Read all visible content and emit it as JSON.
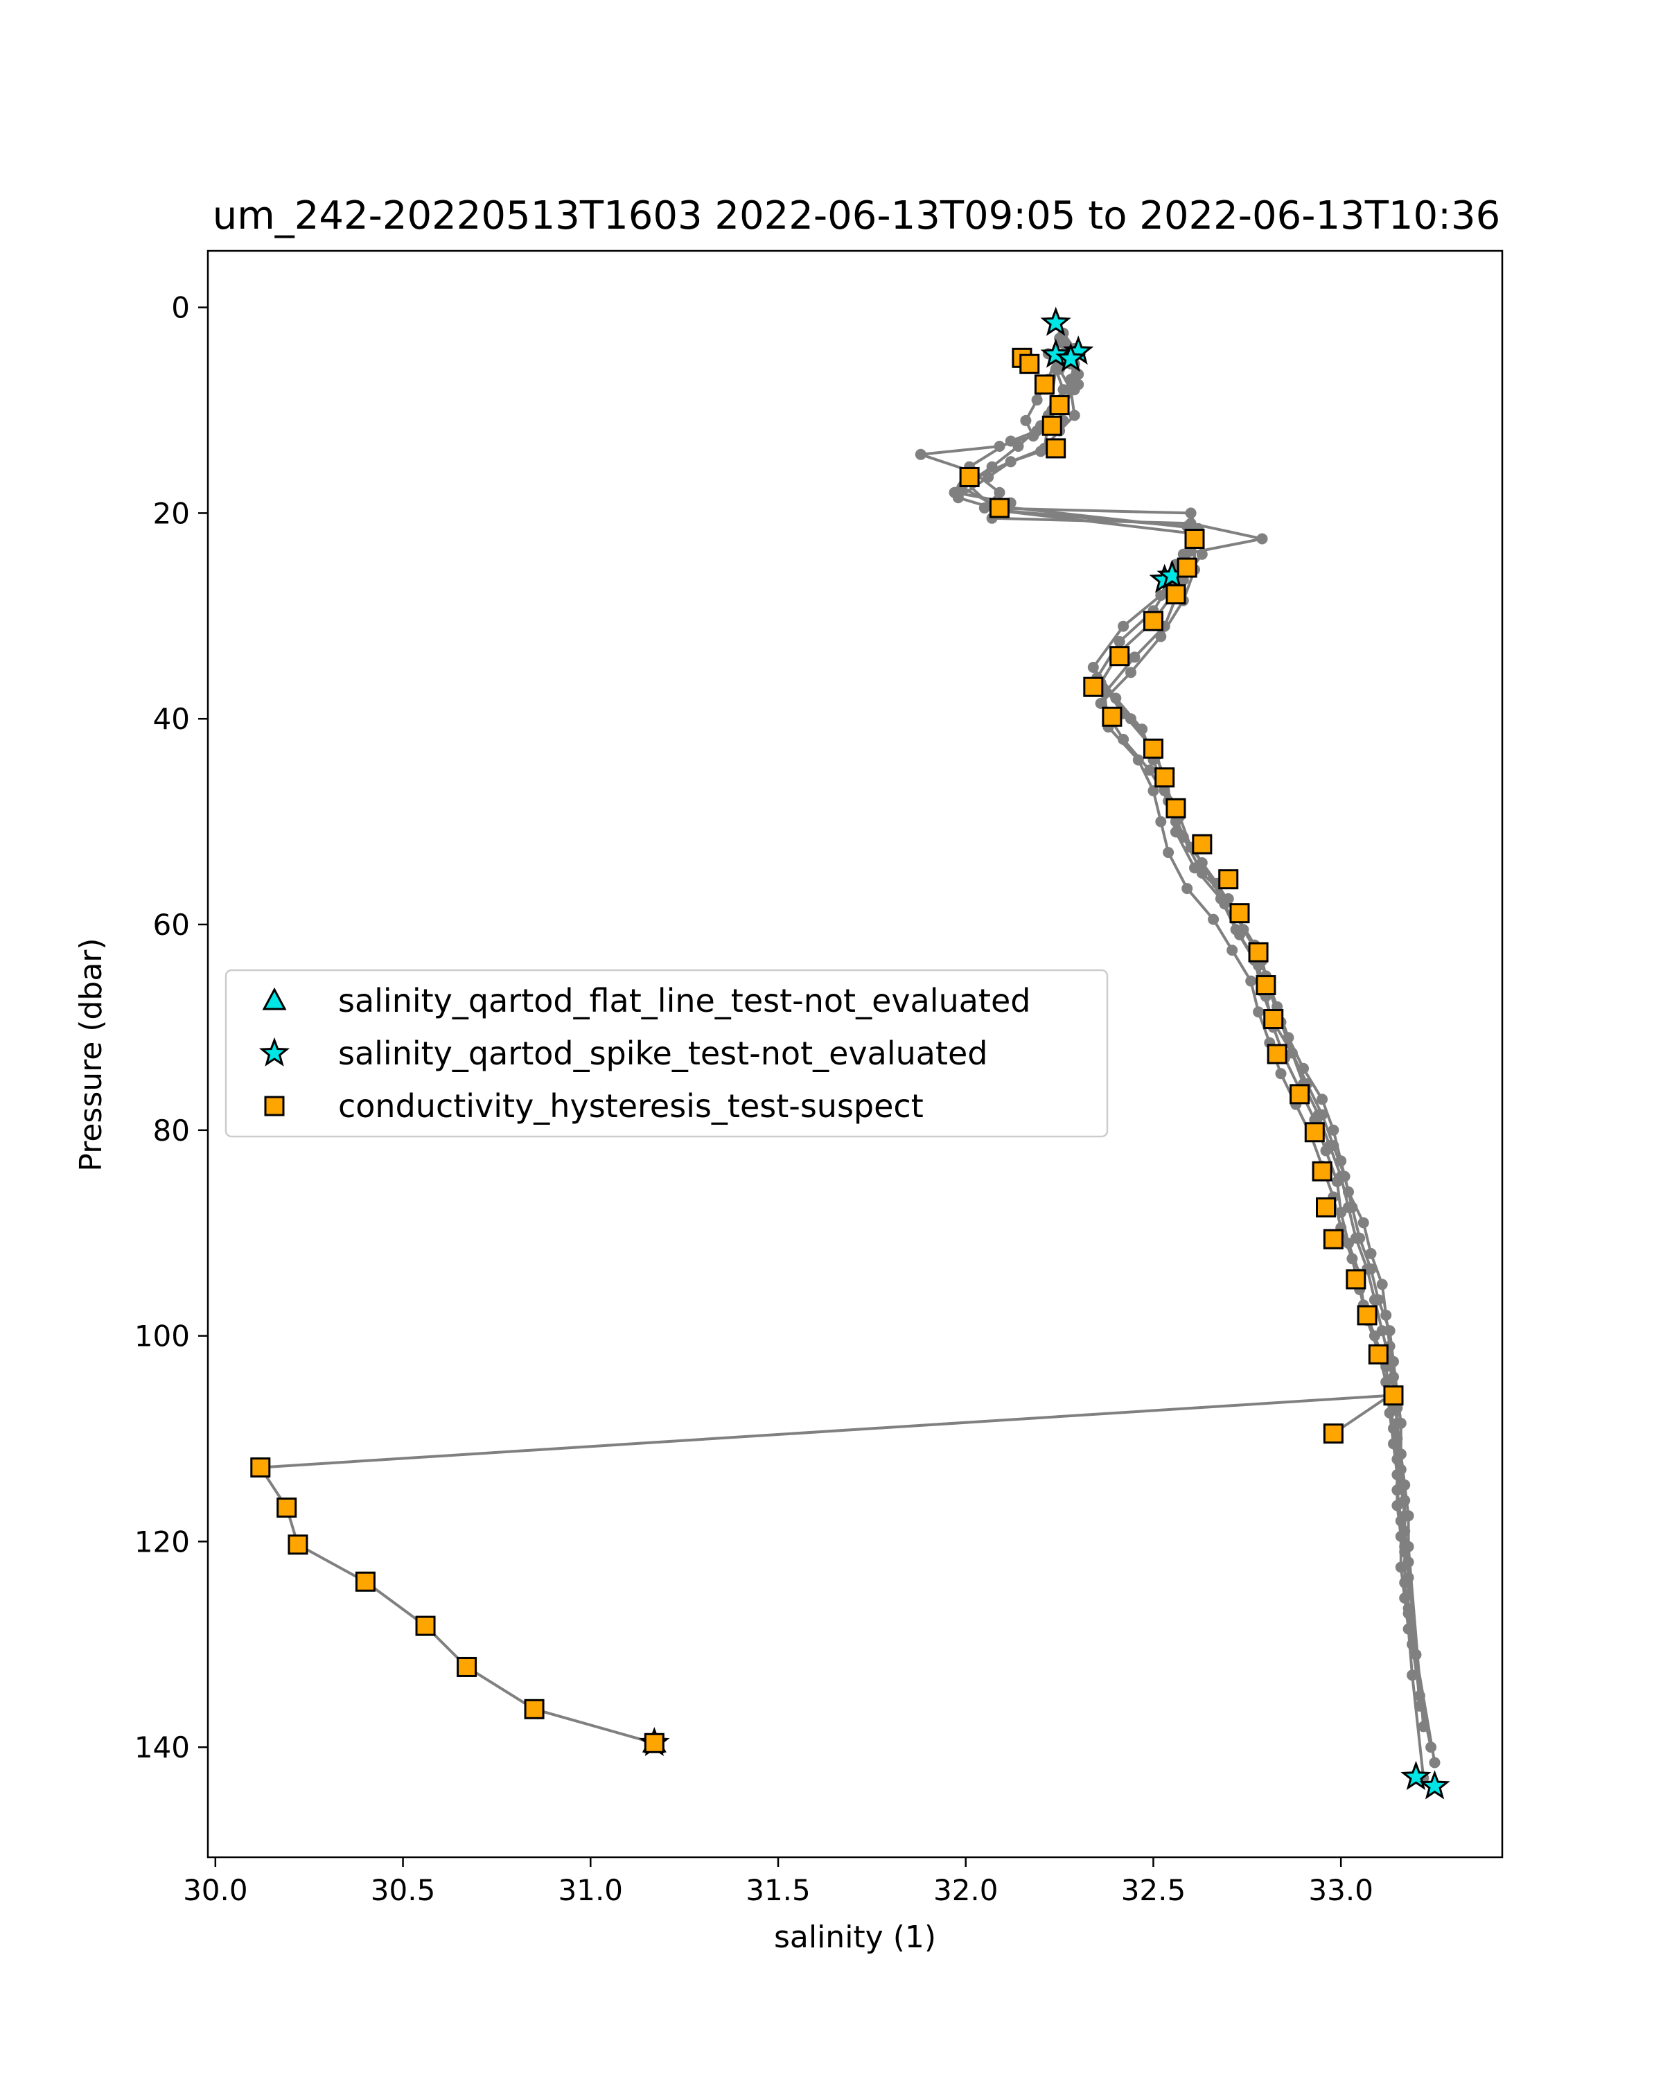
{
  "chart_data": {
    "type": "scatter",
    "title": "um_242-20220513T1603 2022-06-13T09:05 to 2022-06-13T10:36",
    "xlabel": "salinity (1)",
    "ylabel": "Pressure (dbar)",
    "xlim": [
      29.98,
      33.43
    ],
    "ylim": [
      150.7,
      -5.5
    ],
    "y_inverted": true,
    "grid": false,
    "legend_location": "center-left",
    "x_ticks": [
      "30.0",
      "30.5",
      "31.0",
      "31.5",
      "32.0",
      "32.5",
      "33.0"
    ],
    "x_tick_values": [
      30.0,
      30.5,
      31.0,
      31.5,
      32.0,
      32.5,
      33.0
    ],
    "y_ticks": [
      "0",
      "20",
      "40",
      "60",
      "80",
      "100",
      "120",
      "140"
    ],
    "y_tick_values": [
      0,
      20,
      40,
      60,
      80,
      100,
      120,
      140
    ],
    "profile_color": "#808080",
    "profile_segments": [
      {
        "x": [
          32.25,
          32.27,
          32.28,
          32.3,
          32.29,
          32.24,
          32.26,
          32.18,
          32.09,
          31.88,
          32.02,
          32.09,
          32.05,
          32.6,
          32.62,
          32.56,
          32.52,
          32.42,
          32.34,
          32.4,
          32.47,
          32.5,
          32.53,
          32.56,
          32.63,
          32.69,
          32.73,
          32.78,
          32.8,
          32.82,
          32.85,
          32.89,
          32.93,
          32.96,
          32.99,
          33.0,
          33.02,
          33.05,
          33.06,
          33.09,
          33.12,
          33.13,
          33.14,
          33.15,
          33.15,
          33.16,
          33.17,
          33.17,
          33.18,
          33.19,
          33.21,
          33.24
        ]
      },
      {
        "x": [
          32.26,
          32.29,
          32.29,
          32.28,
          32.25,
          32.22,
          32.19,
          32.12,
          32.01,
          31.97,
          32.12,
          32.07,
          32.6,
          32.79,
          32.58,
          32.55,
          32.5,
          32.41,
          32.35,
          32.42,
          32.49,
          32.53,
          32.55,
          32.58,
          32.63,
          32.7,
          32.74,
          32.79,
          32.81,
          32.84,
          32.87,
          32.9,
          32.94,
          32.97,
          33.0,
          33.02,
          33.04,
          33.07,
          33.09,
          33.11,
          33.13,
          33.14,
          33.15,
          33.16,
          33.16,
          33.17,
          33.17,
          33.18,
          33.18,
          33.2,
          33.25
        ]
      },
      {
        "x": [
          32.24,
          32.22,
          32.19,
          32.16,
          32.18,
          32.23,
          32.26,
          32.24,
          32.21,
          32.12,
          32.0,
          32.08,
          32.59,
          32.6,
          32.57,
          32.53,
          32.45,
          32.37,
          32.38,
          32.46,
          32.5,
          32.52,
          32.54,
          32.59,
          32.66,
          32.71,
          32.76,
          32.78,
          32.81,
          32.84,
          32.88,
          32.92,
          32.95,
          32.98,
          33.0,
          33.03,
          33.05,
          33.07,
          33.1,
          33.12,
          33.13,
          33.14,
          33.15,
          33.15,
          33.16,
          33.16,
          33.17,
          33.18,
          33.19,
          33.22
        ]
      },
      {
        "x": [
          32.26,
          32.28,
          32.3,
          32.26,
          32.2,
          32.14,
          32.07,
          31.99,
          32.08,
          32.62,
          32.63,
          32.58,
          32.5,
          32.41,
          32.36,
          32.44,
          32.51,
          32.53,
          32.57,
          32.6,
          32.67,
          32.72,
          32.77,
          32.8,
          32.83,
          32.86,
          32.9,
          32.95,
          32.98,
          33.0,
          33.02,
          33.06,
          33.08,
          33.11,
          33.12,
          33.13,
          33.14,
          33.15,
          33.15,
          33.16,
          33.17,
          33.17,
          33.18,
          33.21
        ]
      },
      {
        "x": [
          32.22,
          32.25,
          32.28,
          32.29,
          32.25,
          32.2,
          32.12,
          32.06,
          31.98,
          32.1,
          32.61,
          32.61,
          32.58,
          32.52,
          32.44,
          32.36,
          32.42,
          32.49,
          32.54,
          32.56,
          32.61,
          32.68,
          32.72,
          32.77,
          32.79,
          32.82,
          32.87,
          32.91,
          32.95,
          32.98,
          33.01,
          33.03,
          33.05,
          33.08,
          33.1,
          33.13,
          33.14,
          33.15,
          33.16,
          33.16,
          33.17,
          33.18,
          33.18,
          33.22
        ]
      },
      {
        "x": [
          32.98,
          33.13,
          30.12,
          30.19,
          30.22,
          30.4,
          30.56,
          30.67,
          30.85,
          31.17
        ]
      }
    ],
    "profile_pressures": [
      [
        3,
        4,
        5,
        6.5,
        8,
        9.5,
        11,
        12.5,
        13.5,
        14.3,
        16,
        18,
        19.5,
        20,
        22.5,
        25,
        28,
        31,
        35,
        38,
        41,
        44,
        47,
        50,
        54,
        58,
        61,
        64,
        67,
        70,
        73,
        76,
        79,
        82,
        85,
        88,
        91,
        94,
        97,
        100,
        103,
        106,
        109,
        112,
        115,
        118,
        121,
        124,
        127,
        130,
        135,
        140
      ],
      [
        2.5,
        4,
        5.5,
        7,
        9,
        10.5,
        12,
        13,
        15.5,
        18,
        19,
        20.5,
        21,
        22.5,
        24,
        26.5,
        29.5,
        32.5,
        36,
        39.5,
        42.5,
        45.5,
        48.5,
        51.5,
        55,
        57.5,
        60.5,
        63.5,
        66.5,
        69.5,
        72.5,
        75.5,
        78.5,
        81.5,
        84.5,
        87.5,
        90.5,
        93.5,
        96.5,
        99.5,
        102.5,
        105.5,
        108.5,
        111.5,
        114.5,
        117.5,
        120.5,
        123.5,
        126.5,
        131,
        141.5
      ],
      [
        5,
        7,
        9,
        11,
        12.5,
        10,
        8,
        6,
        13.7,
        15,
        17,
        19.7,
        21.3,
        23.7,
        27.3,
        31,
        34,
        37.5,
        40.8,
        44,
        47,
        50,
        53,
        56.5,
        59.5,
        62.5,
        65.5,
        68.5,
        71.5,
        74.5,
        77.5,
        80.5,
        83.5,
        86.5,
        89.5,
        92.5,
        95.5,
        98.5,
        101.5,
        104.5,
        107.5,
        110.5,
        113.5,
        116.5,
        119.5,
        122.5,
        125.5,
        128.5,
        133,
        143
      ],
      [
        3.5,
        5.5,
        7.5,
        9.5,
        11.5,
        13.5,
        15.5,
        17.5,
        19.3,
        21.5,
        24,
        26.5,
        30.5,
        33.5,
        36.5,
        40,
        43.5,
        46.5,
        49.5,
        52.5,
        56,
        59,
        62,
        65,
        68,
        71,
        74,
        77,
        80,
        83,
        86,
        89,
        92,
        95,
        98,
        101,
        104,
        107,
        110,
        113,
        116,
        119,
        122,
        136
      ],
      [
        4.5,
        6,
        8,
        10.5,
        12,
        14,
        15,
        16.5,
        18.5,
        19.8,
        22,
        25.5,
        28.5,
        32,
        35.5,
        38.5,
        42,
        45,
        48,
        51,
        54.5,
        57.5,
        60.5,
        63.5,
        66.5,
        69.5,
        72.5,
        75.5,
        78.5,
        81.5,
        84.5,
        87.5,
        90.5,
        93.5,
        96.5,
        99.5,
        102.5,
        105.5,
        108.5,
        111.5,
        114.5,
        117.5,
        120.5,
        138
      ],
      [
        109.5,
        105.8,
        112.8,
        116.7,
        120.3,
        123.9,
        128.2,
        132.2,
        136.3,
        139.6
      ]
    ],
    "series": [
      {
        "name": "salinity_qartod_flat_line_test-not_evaluated",
        "marker": "triangle",
        "color": "#00e5e5",
        "x": [
          31.17
        ],
        "y": [
          139.6
        ]
      },
      {
        "name": "salinity_qartod_spike_test-not_evaluated",
        "marker": "star",
        "color": "#00e5e5",
        "x": [
          32.24,
          32.24,
          32.3,
          32.28,
          32.53,
          32.55,
          31.17,
          33.2,
          33.25
        ],
        "y": [
          1.5,
          4.6,
          4.3,
          5.0,
          26.5,
          26.1,
          139.6,
          142.9,
          143.8
        ]
      },
      {
        "name": "conductivity_hysteresis_test-suspect",
        "marker": "square",
        "color": "#ffa500",
        "x": [
          32.15,
          32.17,
          32.21,
          32.25,
          32.23,
          32.24,
          32.01,
          32.09,
          32.61,
          32.59,
          32.56,
          32.5,
          32.41,
          32.34,
          32.39,
          32.5,
          32.53,
          32.56,
          32.63,
          32.7,
          32.73,
          32.78,
          32.8,
          32.82,
          32.83,
          32.89,
          32.93,
          32.95,
          32.96,
          32.98,
          33.04,
          33.07,
          33.1,
          33.14,
          32.98,
          30.12,
          30.19,
          30.22,
          30.4,
          30.56,
          30.67,
          30.85,
          31.17
        ],
        "y": [
          4.9,
          5.5,
          7.5,
          9.5,
          11.5,
          13.7,
          16.5,
          19.5,
          22.5,
          25.3,
          27.9,
          30.5,
          33.9,
          36.9,
          39.8,
          42.9,
          45.7,
          48.7,
          52.2,
          55.6,
          58.9,
          62.7,
          65.9,
          69.2,
          72.6,
          76.5,
          80.2,
          84.0,
          87.5,
          90.6,
          94.5,
          98.0,
          101.8,
          105.8,
          109.5,
          112.8,
          116.7,
          120.3,
          123.9,
          128.2,
          132.2,
          136.3,
          139.6
        ]
      }
    ]
  }
}
